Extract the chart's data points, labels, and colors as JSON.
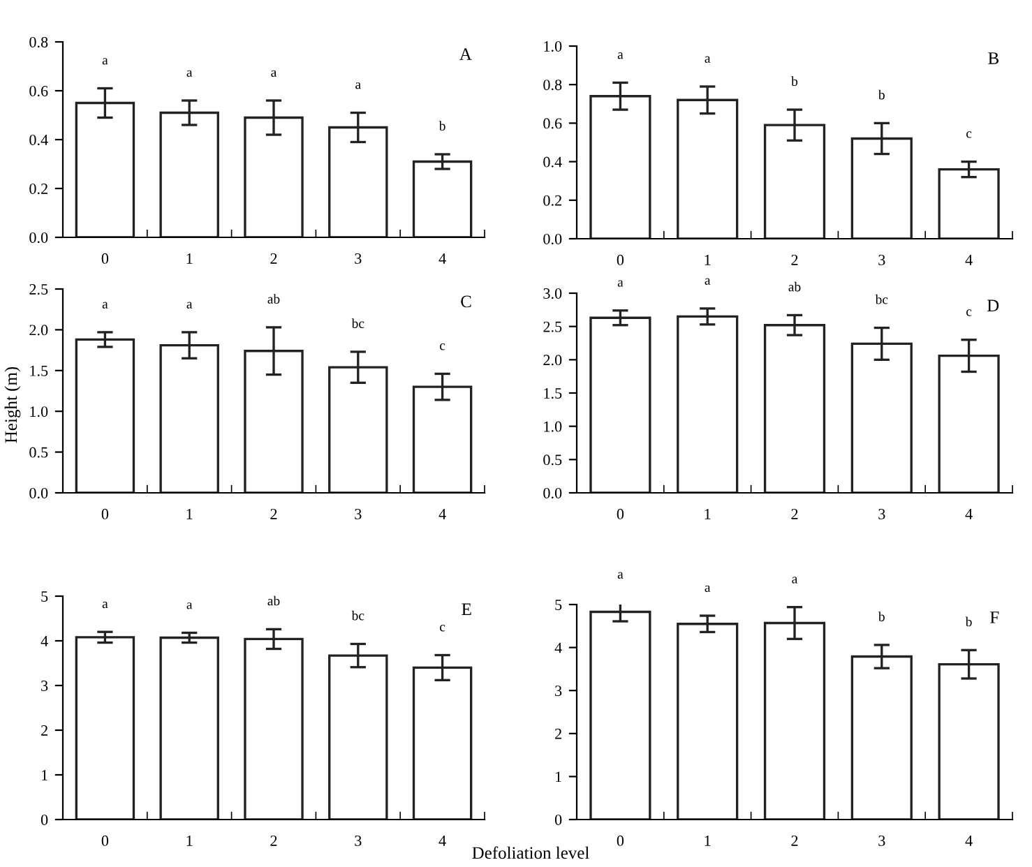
{
  "chart_data": [
    {
      "type": "bar",
      "title": "A",
      "categories": [
        "0",
        "1",
        "2",
        "3",
        "4"
      ],
      "values": [
        0.55,
        0.51,
        0.49,
        0.45,
        0.31
      ],
      "errors": [
        0.06,
        0.05,
        0.07,
        0.06,
        0.03
      ],
      "color": "#ffffff",
      "ylim": [
        0,
        0.8
      ],
      "yticks": [
        {
          "value": 0,
          "label": "0.0"
        },
        0.2,
        0.4,
        0.6,
        0.8
      ],
      "grid": false,
      "annotations": [
        "a",
        "a",
        "a",
        "a",
        "b"
      ]
    },
    {
      "type": "bar",
      "title": "B",
      "categories": [
        "0",
        "1",
        "2",
        "3",
        "4"
      ],
      "values": [
        0.74,
        0.72,
        0.59,
        0.52,
        0.36
      ],
      "errors": [
        0.07,
        0.07,
        0.08,
        0.08,
        0.04
      ],
      "color": "#ffffff",
      "ylim": [
        0,
        1.0
      ],
      "yticks": [
        {
          "value": 0,
          "label": "0.0"
        },
        0.2,
        0.4,
        0.6,
        0.8,
        {
          "value": 1.0,
          "label": "1.0"
        }
      ],
      "grid": false,
      "annotations": [
        "a",
        "a",
        "b",
        "b",
        "c"
      ]
    },
    {
      "type": "bar",
      "title": "C",
      "ylabel": "Height (m)",
      "categories": [
        "0",
        "1",
        "2",
        "3",
        "4"
      ],
      "values": [
        1.88,
        1.81,
        1.74,
        1.54,
        1.3
      ],
      "errors": [
        0.09,
        0.16,
        0.29,
        0.19,
        0.16
      ],
      "color": "#ffffff",
      "ylim": [
        0,
        2.5
      ],
      "yticks": [
        {
          "value": 0,
          "label": "0.0"
        },
        0.5,
        {
          "value": 1.0,
          "label": "1.0"
        },
        1.5,
        {
          "value": 2.0,
          "label": "2.0"
        },
        2.5
      ],
      "grid": false,
      "annotations": [
        "a",
        "a",
        "ab",
        "bc",
        "c"
      ]
    },
    {
      "type": "bar",
      "title": "D",
      "categories": [
        "0",
        "1",
        "2",
        "3",
        "4"
      ],
      "values": [
        2.63,
        2.65,
        2.52,
        2.24,
        2.06
      ],
      "errors": [
        0.11,
        0.12,
        0.15,
        0.24,
        0.24
      ],
      "color": "#ffffff",
      "ylim": [
        0,
        3.0
      ],
      "yticks": [
        {
          "value": 0,
          "label": "0.0"
        },
        0.5,
        {
          "value": 1.0,
          "label": "1.0"
        },
        1.5,
        {
          "value": 2.0,
          "label": "2.0"
        },
        2.5,
        {
          "value": 3.0,
          "label": "3.0"
        }
      ],
      "grid": false,
      "annotations": [
        "a",
        "a",
        "ab",
        "bc",
        "c"
      ]
    },
    {
      "type": "bar",
      "title": "E",
      "xlabel": "Defoliation level",
      "categories": [
        "0",
        "1",
        "2",
        "3",
        "4"
      ],
      "values": [
        4.08,
        4.07,
        4.04,
        3.67,
        3.4
      ],
      "errors": [
        0.12,
        0.11,
        0.22,
        0.26,
        0.28
      ],
      "color": "#ffffff",
      "ylim": [
        0,
        5
      ],
      "yticks": [
        0,
        1,
        2,
        3,
        4,
        5
      ],
      "grid": false,
      "annotations": [
        "a",
        "a",
        "ab",
        "bc",
        "c"
      ]
    },
    {
      "type": "bar",
      "title": "F",
      "categories": [
        "0",
        "1",
        "2",
        "3",
        "4"
      ],
      "values": [
        4.83,
        4.55,
        4.57,
        3.79,
        3.61
      ],
      "errors": [
        0.22,
        0.19,
        0.37,
        0.27,
        0.33
      ],
      "color": "#ffffff",
      "ylim": [
        0,
        5
      ],
      "yticks": [
        0,
        1,
        2,
        3,
        4,
        5
      ],
      "grid": false,
      "annotations": [
        "a",
        "a",
        "a",
        "b",
        "b"
      ]
    }
  ]
}
